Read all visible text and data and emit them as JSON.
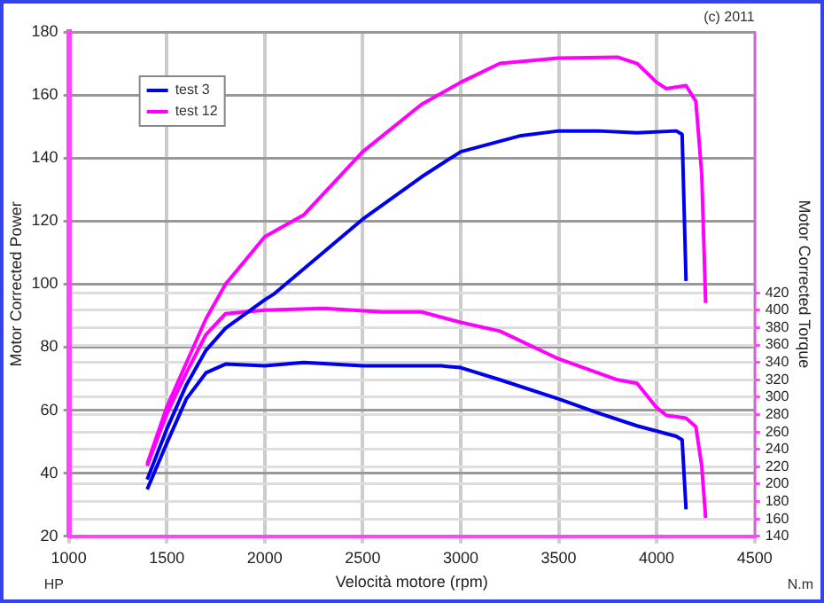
{
  "chart_data": {
    "type": "line",
    "xlabel": "Velocità motore (rpm)",
    "ylabel": "Motor Corrected Power",
    "y2label": "Motor Corrected Torque",
    "annotations": [
      "(c) 2011",
      "HP",
      "N.m"
    ],
    "xlim": [
      1000,
      4500
    ],
    "xticks": [
      1000,
      1500,
      2000,
      2500,
      3000,
      3500,
      4000,
      4500
    ],
    "ylim": [
      20,
      180
    ],
    "yticks": [
      20,
      40,
      60,
      80,
      100,
      120,
      140,
      160,
      180
    ],
    "y2lim": [
      140,
      720
    ],
    "y2ticks": [
      140,
      160,
      180,
      200,
      220,
      240,
      260,
      280,
      300,
      320,
      340,
      360,
      380,
      400,
      420
    ],
    "grid": true,
    "legend": "top left",
    "marker": "none",
    "line_style": "solid",
    "series": [
      {
        "name": "test 3",
        "color": "#0000ee",
        "x": [
          1400,
          1500,
          1600,
          1700,
          1800,
          2000,
          2050,
          2500,
          2800,
          3000,
          3300,
          3500,
          3700,
          3900,
          4100,
          4130,
          4150
        ],
        "values": [
          38,
          54,
          68,
          79,
          86,
          95,
          97,
          120.6,
          134,
          142,
          147,
          148.6,
          148.6,
          148,
          148.6,
          147.5,
          101
        ]
      },
      {
        "name": "test 12",
        "color": "#ff00ff",
        "x": [
          1400,
          1500,
          1600,
          1700,
          1800,
          2000,
          2200,
          2500,
          2800,
          3000,
          3200,
          3500,
          3800,
          3900,
          4000,
          4050,
          4150,
          4200,
          4230,
          4250
        ],
        "values": [
          43,
          61,
          75,
          89,
          100,
          115,
          122,
          142,
          157,
          164,
          170,
          171.7,
          172,
          170,
          164,
          162,
          163,
          158,
          135,
          94
        ]
      },
      {
        "color": "#0000ee",
        "axis": "y2",
        "x": [
          1400,
          1500,
          1600,
          1700,
          1800,
          2000,
          2200,
          2500,
          2800,
          2900,
          3000,
          3200,
          3500,
          3700,
          3900,
          4100,
          4130,
          4150
        ],
        "values": [
          194,
          247,
          298,
          328,
          338,
          336,
          340,
          336,
          336,
          336,
          334,
          320,
          298,
          282,
          267,
          255,
          251,
          171
        ]
      },
      {
        "color": "#ff00ff",
        "axis": "y2",
        "x": [
          1400,
          1500,
          1600,
          1700,
          1800,
          2000,
          2300,
          2600,
          2800,
          3000,
          3200,
          3500,
          3800,
          3900,
          4000,
          4050,
          4150,
          4200,
          4230,
          4250
        ],
        "values": [
          221,
          281,
          328,
          372,
          396,
          400,
          402,
          398,
          398,
          386,
          376,
          344,
          320,
          316,
          288,
          279,
          276,
          266,
          221,
          161
        ]
      }
    ]
  }
}
